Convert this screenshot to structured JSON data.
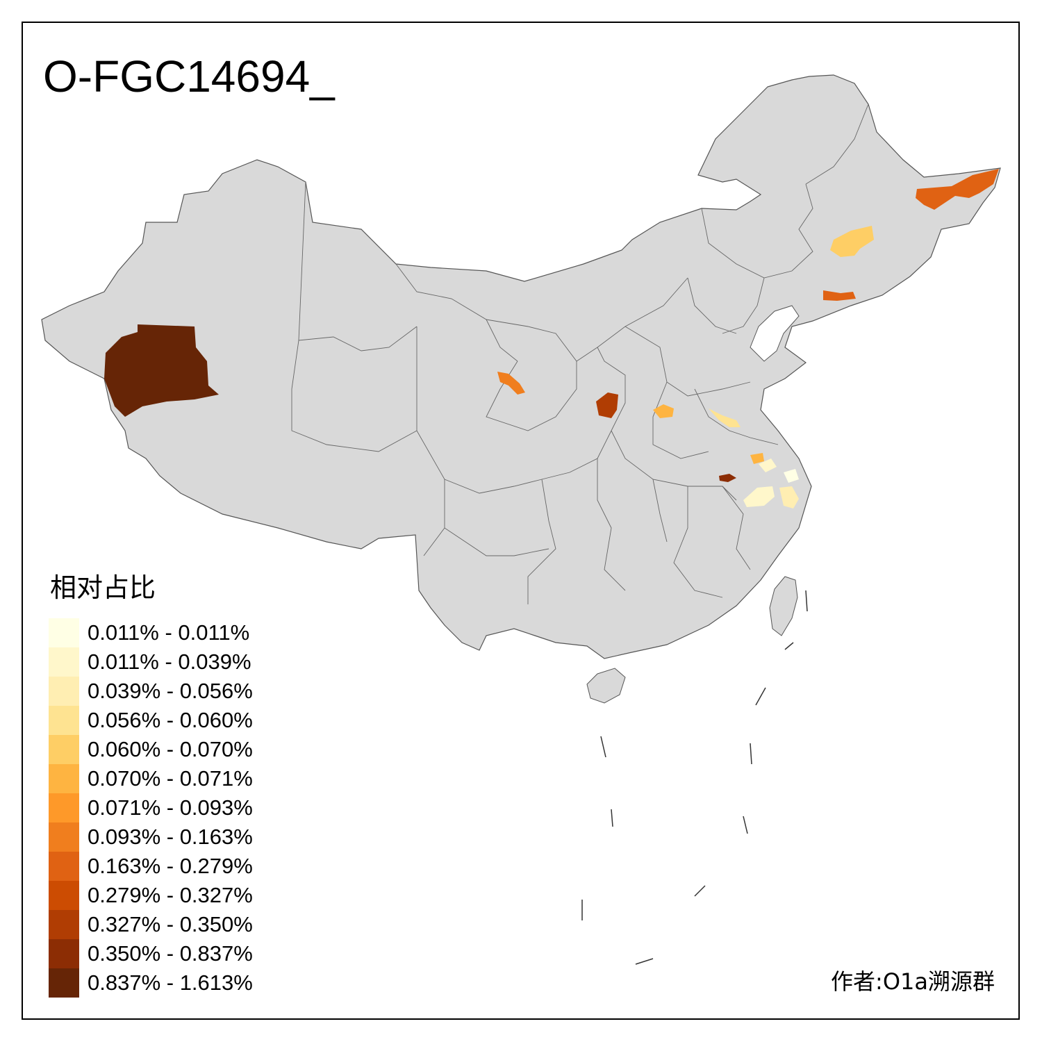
{
  "map": {
    "title": "O-FGC14694_",
    "author": "作者:O1a溯源群",
    "base_fill": "#d9d9d9",
    "border_color": "#555555"
  },
  "legend": {
    "title": "相对占比",
    "items": [
      {
        "label": "0.011% - 0.011%",
        "color": "#ffffe5"
      },
      {
        "label": "0.011% - 0.039%",
        "color": "#fff7cb"
      },
      {
        "label": "0.039% - 0.056%",
        "color": "#ffeeb2"
      },
      {
        "label": "0.056% - 0.060%",
        "color": "#fee391"
      },
      {
        "label": "0.060% - 0.070%",
        "color": "#fece65"
      },
      {
        "label": "0.070% - 0.071%",
        "color": "#feb441"
      },
      {
        "label": "0.071% - 0.093%",
        "color": "#fe9929"
      },
      {
        "label": "0.093% - 0.163%",
        "color": "#f07e1e"
      },
      {
        "label": "0.163% - 0.279%",
        "color": "#e06213"
      },
      {
        "label": "0.279% - 0.327%",
        "color": "#cc4c02"
      },
      {
        "label": "0.327% - 0.350%",
        "color": "#b03d03"
      },
      {
        "label": "0.350% - 0.837%",
        "color": "#8c2d04"
      },
      {
        "label": "0.837% - 1.613%",
        "color": "#662506"
      }
    ]
  }
}
